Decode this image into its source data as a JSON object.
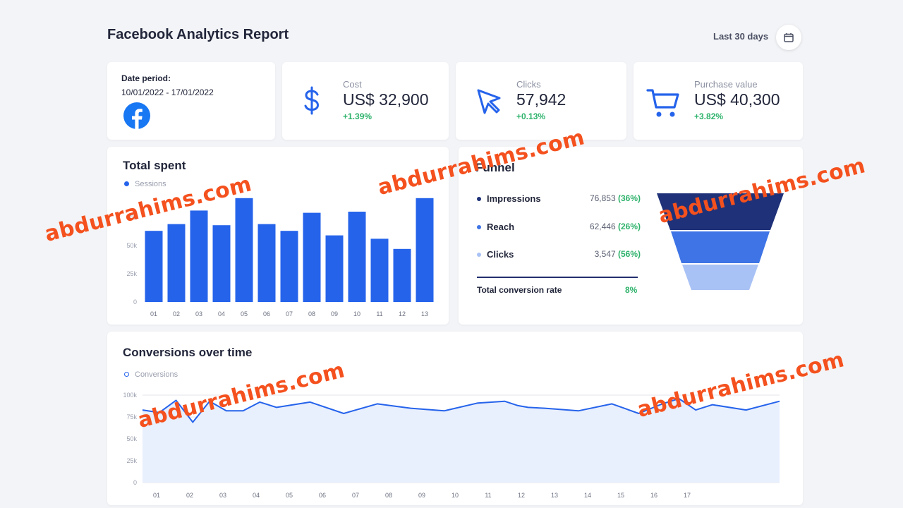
{
  "header": {
    "title": "Facebook Analytics Report",
    "range_label": "Last 30 days",
    "calendar_icon": "calendar-icon"
  },
  "date_card": {
    "label": "Date period:",
    "value": "10/01/2022 - 17/01/2022",
    "icon": "facebook-icon",
    "brand_color": "#1877f2"
  },
  "kpis": [
    {
      "icon": "dollar-icon",
      "label": "Cost",
      "value": "US$ 32,900",
      "change": "+1.39%"
    },
    {
      "icon": "cursor-icon",
      "label": "Clicks",
      "value": "57,942",
      "change": "+0.13%"
    },
    {
      "icon": "cart-icon",
      "label": "Purchase value",
      "value": "US$ 40,300",
      "change": "+3.82%"
    }
  ],
  "colors": {
    "accent": "#2563eb",
    "positive": "#2fb36c",
    "funnel_dark": "#1f3178",
    "funnel_mid": "#3e74e6",
    "funnel_light": "#a9c2f5",
    "watermark": "#f4511e"
  },
  "total_spent": {
    "title": "Total spent",
    "legend": "Sessions"
  },
  "funnel": {
    "title": "Funnel",
    "rows": [
      {
        "name": "Impressions",
        "value": "76,853",
        "pct": "(36%)"
      },
      {
        "name": "Reach",
        "value": "62,446",
        "pct": "(26%)"
      },
      {
        "name": "Clicks",
        "value": "3,547",
        "pct": "(56%)"
      }
    ],
    "total_label": "Total conversion rate",
    "total_value": "8%"
  },
  "conversions": {
    "title": "Conversions over time",
    "legend": "Conversions"
  },
  "watermarks": [
    "abdurrahims.com",
    "abdurrahims.com",
    "abdurrahims.com",
    "abdurrahims.com",
    "abdurrahims.com",
    "abdurrahims.com"
  ],
  "chart_data": [
    {
      "type": "bar",
      "categories": [
        "01",
        "02",
        "03",
        "04",
        "05",
        "06",
        "07",
        "08",
        "09",
        "10",
        "11",
        "12",
        "13"
      ],
      "series": [
        {
          "name": "Sessions",
          "values": [
            63,
            69,
            81,
            68,
            92,
            69,
            63,
            79,
            59,
            80,
            56,
            47,
            92
          ]
        }
      ],
      "yticks": [
        "0",
        "25k",
        "50k",
        "75k"
      ],
      "ylim": [
        0,
        100
      ],
      "grid": false,
      "legend": "top-left"
    },
    {
      "type": "area",
      "categories": [
        "01",
        "02",
        "03",
        "04",
        "05",
        "06",
        "07",
        "08",
        "09",
        "10",
        "11",
        "12",
        "13",
        "14",
        "15",
        "16",
        "17"
      ],
      "x": [
        0.0,
        0.5,
        1.0,
        1.5,
        2.0,
        2.5,
        3.0,
        3.5,
        4.0,
        5.0,
        6.0,
        7.0,
        8.0,
        9.0,
        10.0,
        10.8,
        11.2,
        11.5,
        12.0,
        13.0,
        14.0,
        14.8,
        15.5,
        16.0,
        16.5,
        17.0,
        18.0,
        19.0
      ],
      "series": [
        {
          "name": "Conversions",
          "values": [
            83,
            80,
            94,
            69,
            93,
            82,
            82,
            92,
            86,
            92,
            79,
            90,
            85,
            82,
            91,
            93,
            88,
            86,
            85,
            82,
            90,
            79,
            90,
            96,
            83,
            89,
            83,
            93
          ]
        }
      ],
      "yticks": [
        "0",
        "25k",
        "50k",
        "75k",
        "100k"
      ],
      "ylim": [
        0,
        100
      ],
      "xlim": [
        0,
        19
      ],
      "grid": true,
      "legend": "top-left"
    }
  ]
}
